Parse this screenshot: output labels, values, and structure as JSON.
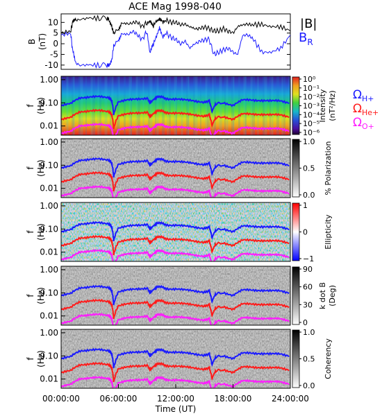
{
  "title": "ACE Mag 1998-040",
  "xaxis": {
    "label": "Time (UT)",
    "ticks": [
      "00:00:00",
      "06:00:00",
      "12:00:00",
      "18:00:00",
      "24:00:00"
    ],
    "range_hours": [
      0,
      24
    ]
  },
  "colors": {
    "B_total": "#000000",
    "B_R": "#1a1aff",
    "omega_H": "#1a1aff",
    "omega_He": "#ff1a1a",
    "omega_O": "#ff1aff"
  },
  "legend": {
    "B_total": "|B|",
    "B_R_main": "B",
    "B_R_sub": "R",
    "omega_symbol": "Ω",
    "omega_H_sub": "H+",
    "omega_He_sub": "He+",
    "omega_O_sub": "O+"
  },
  "chart_data": [
    {
      "type": "line",
      "panel": "magnetic-field",
      "ylabel": "B",
      "yunit": "(nT)",
      "ylim": [
        -12,
        14
      ],
      "yticks": [
        "10",
        "5",
        "0",
        "-5",
        "-10"
      ],
      "x": [
        0,
        1,
        1.2,
        1.5,
        2,
        3,
        4,
        4.8,
        5,
        5.3,
        5.5,
        6,
        6.3,
        7,
        7.5,
        8,
        8.5,
        9,
        9.3,
        9.6,
        10,
        10.3,
        10.6,
        11,
        11.5,
        12,
        12.5,
        13,
        13.5,
        14,
        14.5,
        15,
        15.5,
        16,
        16.5,
        17,
        17.5,
        18,
        18.5,
        19,
        19.5,
        20,
        21,
        22,
        23,
        24
      ],
      "series": [
        {
          "name": "|B|",
          "values": [
            5,
            6,
            10,
            11,
            11.5,
            12,
            12,
            12,
            11.5,
            8,
            5,
            7,
            9,
            9,
            10,
            10,
            8,
            10,
            11,
            8,
            11,
            12,
            10,
            11,
            10,
            10,
            9,
            9,
            8,
            7,
            7,
            8,
            7,
            6,
            6,
            7,
            6,
            5,
            8,
            9,
            9,
            9,
            9,
            8,
            8,
            6
          ]
        },
        {
          "name": "B_R",
          "values": [
            4,
            5,
            -3,
            -9,
            -10,
            -10,
            -10,
            -10,
            -10,
            -8,
            -1,
            2,
            4,
            4,
            6,
            4,
            2,
            6,
            -4,
            -1,
            4,
            8,
            3,
            5,
            3,
            2,
            0,
            1,
            -2,
            0,
            1,
            2,
            2,
            -5,
            -4,
            -3,
            -2,
            -4,
            -5,
            4,
            4,
            3,
            -4,
            -4,
            -2,
            4
          ]
        }
      ]
    },
    {
      "type": "heatmap",
      "panel": "power-spectrum",
      "ylabel": "f",
      "yunit": "(Hz)",
      "yticks": [
        "1.00",
        "0.10",
        "0.01"
      ],
      "colorbar_label": "Intensity",
      "colorbar_unit": "(nT²/Hz)",
      "colorbar_ticks": [
        "10⁰",
        "10⁻¹",
        "10⁻²",
        "10⁻³",
        "10⁻⁴",
        "10⁻⁵",
        "10⁻⁶"
      ]
    },
    {
      "type": "heatmap",
      "panel": "polarization",
      "ylabel": "f",
      "yunit": "(Hz)",
      "yticks": [
        "1.00",
        "0.10",
        "0.01"
      ],
      "colorbar_label": "% Polarization",
      "colorbar_ticks": [
        "1.0",
        "0.5",
        "0.0"
      ]
    },
    {
      "type": "heatmap",
      "panel": "ellipticity",
      "ylabel": "f",
      "yunit": "(Hz)",
      "yticks": [
        "1.00",
        "0.10",
        "0.01"
      ],
      "colorbar_label": "Ellipticity",
      "colorbar_ticks": [
        "1",
        "0",
        "−1"
      ]
    },
    {
      "type": "heatmap",
      "panel": "k-dot-b",
      "ylabel": "f",
      "yunit": "(Hz)",
      "yticks": [
        "1.00",
        "0.10",
        "0.01"
      ],
      "colorbar_label": "k dot B",
      "colorbar_unit": "(Deg)",
      "colorbar_ticks": [
        "90",
        "60",
        "30",
        "0"
      ]
    },
    {
      "type": "heatmap",
      "panel": "coherency",
      "ylabel": "f",
      "yunit": "(Hz)",
      "yticks": [
        "1.00",
        "0.10",
        "0.01"
      ],
      "colorbar_label": "Coherency",
      "colorbar_ticks": [
        "1.0",
        "0.5",
        "0.0"
      ]
    }
  ],
  "gyrofrequency_lines": {
    "x_hours": [
      0,
      1,
      2,
      3,
      4,
      5,
      5.3,
      5.5,
      6,
      7,
      8,
      9,
      9.3,
      9.6,
      10,
      10.5,
      11,
      12,
      13,
      14,
      15,
      15.5,
      15.8,
      16.2,
      17,
      18,
      19,
      20,
      21,
      22,
      23,
      24
    ],
    "omega_H_hz": [
      0.075,
      0.09,
      0.17,
      0.18,
      0.18,
      0.17,
      0.12,
      0.03,
      0.11,
      0.13,
      0.15,
      0.16,
      0.1,
      0.13,
      0.17,
      0.18,
      0.15,
      0.15,
      0.13,
      0.12,
      0.11,
      0.12,
      0.04,
      0.09,
      0.1,
      0.08,
      0.13,
      0.13,
      0.13,
      0.12,
      0.12,
      0.1
    ]
  }
}
